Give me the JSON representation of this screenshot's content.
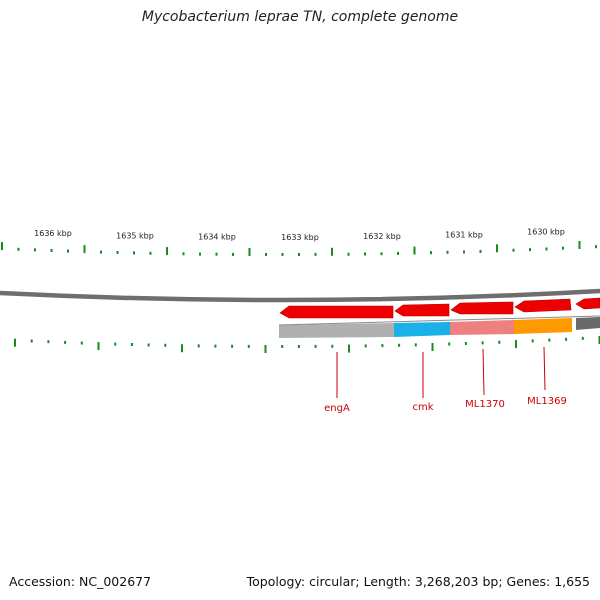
{
  "title": "Mycobacterium leprae TN, complete genome",
  "footer": {
    "accession": "Accession: NC_002677",
    "summary": "Topology: circular; Length: 3,268,203 bp; Genes: 1,655"
  },
  "colors": {
    "tick": "#1a8a1a",
    "backbone": "#6e6e6e",
    "gene_red": "#ee0000",
    "label": "#cc0000",
    "cyan": "#1ab0e8",
    "pink": "#ee8080",
    "orange": "#ff9900",
    "grey_bar": "#b0b0b0"
  },
  "ruler": {
    "kbp_labels": [
      {
        "label": "1636 kbp"
      },
      {
        "label": "1635 kbp"
      },
      {
        "label": "1634 kbp"
      },
      {
        "label": "1633 kbp"
      },
      {
        "label": "1632 kbp"
      },
      {
        "label": "1631 kbp"
      },
      {
        "label": "1630 kbp"
      }
    ]
  },
  "genes": [
    {
      "name": "engA"
    },
    {
      "name": "cmk"
    },
    {
      "name": "ML1370"
    },
    {
      "name": "ML1369"
    }
  ]
}
